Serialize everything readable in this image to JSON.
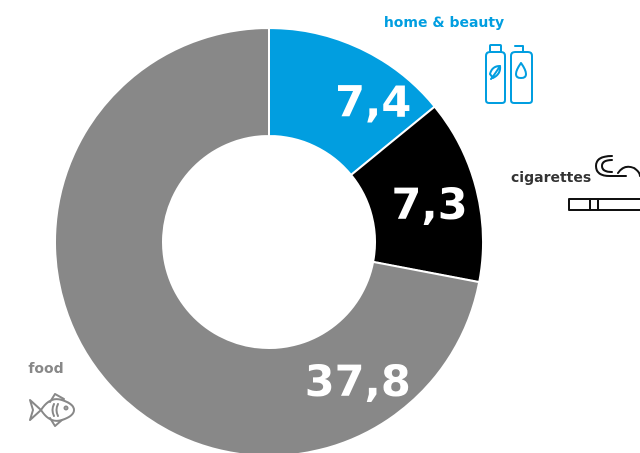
{
  "chart_data": {
    "type": "pie",
    "style": "donut",
    "series": [
      {
        "label": "home & beauty",
        "value": 7.4,
        "value_label": "7,4",
        "color": "#019ee0",
        "label_color": "#019ee0",
        "icon": "shampoo-bottles-icon"
      },
      {
        "label": "cigarettes",
        "value": 7.3,
        "value_label": "7,3",
        "color": "#000000",
        "label_color": "#333333",
        "icon": "cigarette-icon"
      },
      {
        "label": "food",
        "value": 37.8,
        "value_label": "37,8",
        "color": "#888888",
        "label_color": "#888888",
        "icon": "fish-icon"
      }
    ]
  }
}
